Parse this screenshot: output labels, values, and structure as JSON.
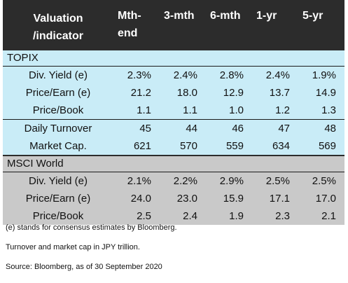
{
  "header": {
    "label_line1": "Valuation",
    "label_line2": "/indicator",
    "columns": [
      {
        "line1": "Mth-",
        "line2": "end"
      },
      {
        "line1": "3-mth",
        "line2": ""
      },
      {
        "line1": "6-mth",
        "line2": ""
      },
      {
        "line1": "1-yr",
        "line2": ""
      },
      {
        "line1": "5-yr",
        "line2": ""
      }
    ]
  },
  "topix": {
    "title": "TOPIX",
    "rows": [
      {
        "label": "Div. Yield (e)",
        "values": [
          "2.3%",
          "2.4%",
          "2.8%",
          "2.4%",
          "1.9%"
        ]
      },
      {
        "label": "Price/Earn (e)",
        "values": [
          "21.2",
          "18.0",
          "12.9",
          "13.7",
          "14.9"
        ]
      },
      {
        "label": "Price/Book",
        "values": [
          "1.1",
          "1.1",
          "1.0",
          "1.2",
          "1.3"
        ]
      },
      {
        "label": "Daily Turnover",
        "values": [
          "45",
          "44",
          "46",
          "47",
          "48"
        ]
      },
      {
        "label": "Market Cap.",
        "values": [
          "621",
          "570",
          "559",
          "634",
          "569"
        ]
      }
    ]
  },
  "msci": {
    "title": "MSCI World",
    "rows": [
      {
        "label": "Div. Yield (e)",
        "values": [
          "2.1%",
          "2.2%",
          "2.9%",
          "2.5%",
          "2.5%"
        ]
      },
      {
        "label": "Price/Earn (e)",
        "values": [
          "24.0",
          "23.0",
          "15.9",
          "17.1",
          "17.0"
        ]
      },
      {
        "label": "Price/Book",
        "values": [
          "2.5",
          "2.4",
          "1.9",
          "2.3",
          "2.1"
        ]
      }
    ]
  },
  "notes": [
    "(e) stands for consensus estimates by Bloomberg.",
    "Turnover and market cap in JPY trillion.",
    "Source: Bloomberg, as of 30 September 2020"
  ]
}
